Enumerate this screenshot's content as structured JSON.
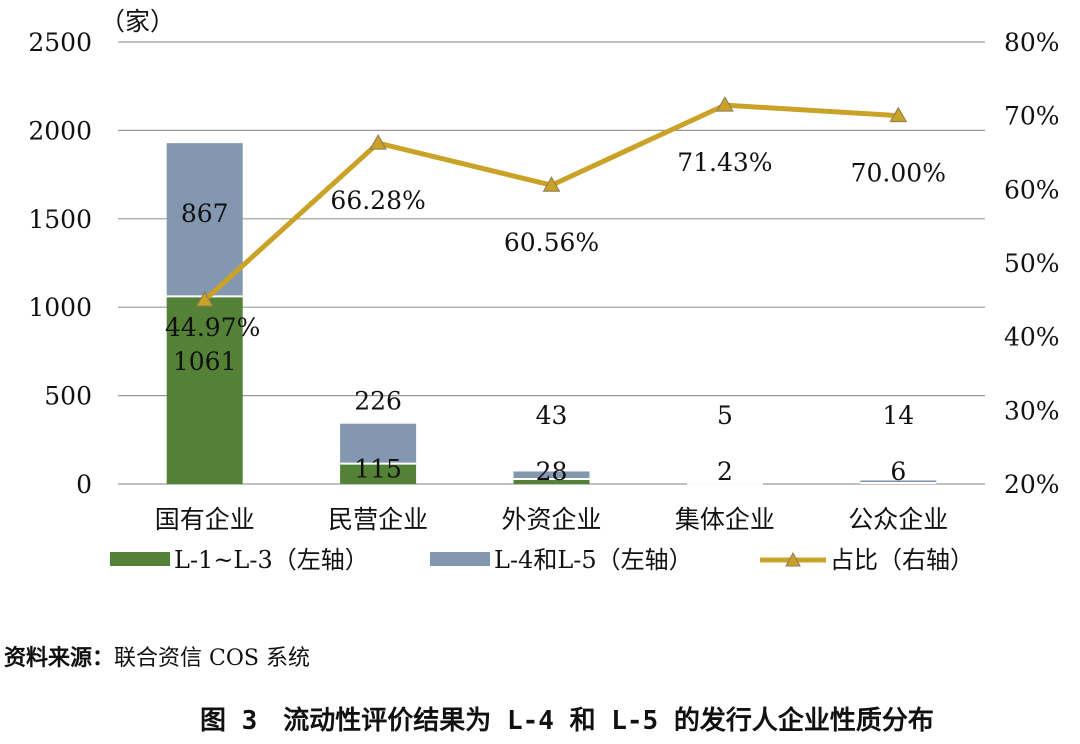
{
  "chart_data": {
    "type": "bar+line",
    "y_unit_label": "（家）",
    "categories": [
      "国有企业",
      "民营企业",
      "外资企业",
      "集体企业",
      "公众企业"
    ],
    "left_axis": {
      "min": 0,
      "max": 2500,
      "step": 500,
      "ticks": [
        "0",
        "500",
        "1000",
        "1500",
        "2000",
        "2500"
      ]
    },
    "right_axis": {
      "min": 20,
      "max": 80,
      "step": 10,
      "ticks": [
        "20%",
        "30%",
        "40%",
        "50%",
        "60%",
        "70%",
        "80%"
      ]
    },
    "series": [
      {
        "name": "L-1~L-3（左轴）",
        "type": "stacked-bar",
        "color": "#538135",
        "values": [
          1061,
          115,
          28,
          2,
          6
        ],
        "labels": [
          "1061",
          "115",
          "28",
          "2",
          "6"
        ]
      },
      {
        "name": "L-4和L-5（左轴）",
        "type": "stacked-bar",
        "color": "#8497B0",
        "values": [
          867,
          226,
          43,
          5,
          14
        ],
        "labels": [
          "867",
          "226",
          "43",
          "5",
          "14"
        ]
      },
      {
        "name": "占比（右轴）",
        "type": "line",
        "axis": "right",
        "color": "#C9A227",
        "values": [
          44.97,
          66.28,
          60.56,
          71.43,
          70.0
        ],
        "labels": [
          "44.97%",
          "66.28%",
          "60.56%",
          "71.43%",
          "70.00%"
        ]
      }
    ]
  },
  "source": {
    "prefix": "资料来源：",
    "name": "联合资信 COS 系统"
  },
  "figure_title": "图 3　流动性评价结果为 L-4 和 L-5 的发行人企业性质分布"
}
